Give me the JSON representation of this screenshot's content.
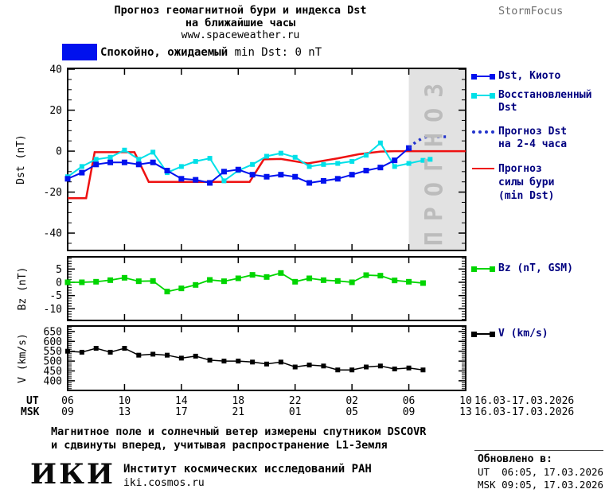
{
  "header": {
    "title_line1": "Прогноз геомагнитной бури и индекса Dst",
    "title_line2": "на ближайшие часы",
    "website": "www.spaceweather.ru",
    "brand": "StormFocus"
  },
  "status_banner": {
    "box_color": "#0011ee",
    "text_bold": "Спокойно, ожидаемый",
    "text_rest": " min Dst: 0 nT"
  },
  "forecast_zone": {
    "label": "ПРОГНОЗ",
    "fill": "#e2e2e2",
    "text_color": "#bcbcbc"
  },
  "legend_dst": {
    "items": [
      {
        "lines": [
          "Dst, Киото"
        ],
        "color": "#0011ee",
        "style": "solid-square"
      },
      {
        "lines": [
          "Восстановленный",
          "Dst"
        ],
        "color": "#00e0e8",
        "style": "solid-square"
      },
      {
        "lines": [
          "Прогноз Dst",
          "на 2-4 часа"
        ],
        "color": "#2233cc",
        "style": "dotted"
      },
      {
        "lines": [
          "Прогноз",
          "силы бури",
          "(min Dst)"
        ],
        "color": "#ee1111",
        "style": "solid"
      }
    ]
  },
  "legend_bz": {
    "label": "Bz (nT, GSM)",
    "color": "#00d500"
  },
  "legend_v": {
    "label": "V (km/s)",
    "color": "#000000"
  },
  "xaxis": {
    "ut_label": "UT",
    "msk_label": "MSK",
    "hours": [
      6,
      10,
      14,
      18,
      22,
      26,
      30,
      34
    ],
    "ut_values": [
      "06",
      "10",
      "14",
      "18",
      "22",
      "02",
      "06",
      "10"
    ],
    "msk_values": [
      "09",
      "13",
      "17",
      "21",
      "01",
      "05",
      "09",
      "13"
    ],
    "date_range": "16.03-17.03.2026"
  },
  "chart_data": [
    {
      "type": "line",
      "name": "dst",
      "ylabel": "Dst (nT)",
      "x_axis_note": "UT hour, 6 = 16.03.2026 06:00, 34 = 17.03.2026 10:00",
      "xlim": [
        6,
        34
      ],
      "ylim": [
        -48.5,
        40.4
      ],
      "yticks_major": [
        40,
        20,
        0,
        -20,
        -40
      ],
      "ytick_minor_step": 5,
      "xticks_major": [
        10,
        14,
        18,
        22,
        26,
        30
      ],
      "grid": false,
      "forecast_region": {
        "x0": 30,
        "x1": 34
      },
      "series": [
        {
          "name": "Прогноз силы бури (min Dst)",
          "key": "storm-forecast",
          "color": "#ee1111",
          "style": "solid",
          "width": 2.5,
          "marker": "none",
          "x": [
            6,
            7.3,
            7.9,
            10.7,
            11.7,
            18.8,
            19.8,
            21,
            22.9,
            25,
            26.5,
            28,
            29,
            34
          ],
          "y": [
            -23,
            -23,
            -0.5,
            -0.5,
            -15,
            -15,
            -4,
            -3.8,
            -6,
            -3.5,
            -1.5,
            -0.2,
            0,
            0
          ]
        },
        {
          "name": "Восстановленный Dst",
          "key": "restored-dst",
          "color": "#00e0e8",
          "style": "solid",
          "width": 2,
          "marker": "square",
          "marker_size": 6,
          "x": [
            6,
            7,
            8,
            9,
            10,
            11,
            12,
            13,
            14,
            15,
            16,
            17,
            18,
            19,
            20,
            21,
            22,
            23,
            24,
            25,
            26,
            27,
            28,
            29,
            30,
            31,
            31.5
          ],
          "y": [
            -12.5,
            -7.5,
            -4,
            -3,
            0.5,
            -4,
            -0.5,
            -10.5,
            -7.5,
            -5,
            -3.5,
            -14.5,
            -9.5,
            -6.5,
            -2.5,
            -1,
            -3,
            -7.5,
            -6.5,
            -6,
            -5,
            -2,
            4,
            -7.5,
            -6,
            -4.5,
            -4
          ]
        },
        {
          "name": "Dst, Киото",
          "key": "dst-kyoto",
          "color": "#0011ee",
          "style": "solid",
          "width": 2,
          "marker": "square",
          "marker_size": 7,
          "x": [
            6,
            7,
            8,
            9,
            10,
            11,
            12,
            13,
            14,
            15,
            16,
            17,
            18,
            19,
            20,
            21,
            22,
            23,
            24,
            25,
            26,
            27,
            28,
            29,
            30
          ],
          "y": [
            -13.5,
            -10.5,
            -6.5,
            -5.5,
            -5.5,
            -6.5,
            -5.5,
            -9.5,
            -13.5,
            -14,
            -15.5,
            -10,
            -9,
            -11.5,
            -12.5,
            -11.5,
            -12.5,
            -15.5,
            -14.5,
            -13.5,
            -11.5,
            -9.5,
            -8,
            -4.5,
            1.5
          ]
        },
        {
          "name": "Прогноз Dst на 2-4 часа",
          "key": "dst-forecast",
          "color": "#2233cc",
          "style": "dotted",
          "width": 3.5,
          "marker": "none",
          "x": [
            30,
            30.5,
            31,
            31.3,
            32.8
          ],
          "y": [
            1.5,
            4.5,
            6.5,
            7,
            7
          ]
        }
      ]
    },
    {
      "type": "line",
      "name": "bz",
      "ylabel": "Bz (nT)",
      "xlim": [
        6,
        34
      ],
      "ylim": [
        -14.4,
        9.6
      ],
      "yticks_major": [
        5,
        0,
        -5,
        -10
      ],
      "ytick_minor_step": 1,
      "xticks_major": [
        10,
        14,
        18,
        22,
        26,
        30
      ],
      "grid": false,
      "series": [
        {
          "name": "Bz (nT, GSM)",
          "key": "bz",
          "color": "#00d500",
          "style": "solid",
          "width": 1.8,
          "marker": "square",
          "marker_size": 7,
          "x": [
            6,
            7,
            8,
            9,
            10,
            11,
            12,
            13,
            14,
            15,
            16,
            17,
            18,
            19,
            20,
            21,
            22,
            23,
            24,
            25,
            26,
            27,
            28,
            29,
            30,
            31
          ],
          "y": [
            0,
            0,
            0.2,
            0.8,
            1.7,
            0.4,
            0.5,
            -3.5,
            -2.3,
            -1,
            0.9,
            0.4,
            1.5,
            2.8,
            2,
            3.5,
            0.2,
            1.5,
            0.8,
            0.5,
            0,
            2.7,
            2.5,
            0.7,
            0.2,
            -0.3
          ]
        }
      ]
    },
    {
      "type": "line",
      "name": "v",
      "ylabel": "V (km/s)",
      "xlim": [
        6,
        34
      ],
      "ylim": [
        351,
        678
      ],
      "yticks_major": [
        650,
        600,
        550,
        500,
        450,
        400
      ],
      "ytick_minor_step": 10,
      "xticks_major": [
        10,
        14,
        18,
        22,
        26,
        30
      ],
      "grid": false,
      "series": [
        {
          "name": "V (km/s)",
          "key": "v",
          "color": "#000000",
          "style": "solid",
          "width": 1.5,
          "marker": "square",
          "marker_size": 6,
          "x": [
            6,
            7,
            8,
            9,
            10,
            11,
            12,
            13,
            14,
            15,
            16,
            17,
            18,
            19,
            20,
            21,
            22,
            23,
            24,
            25,
            26,
            27,
            28,
            29,
            30,
            31
          ],
          "y": [
            550,
            545,
            565,
            545,
            565,
            530,
            535,
            530,
            515,
            525,
            505,
            500,
            500,
            495,
            485,
            495,
            470,
            480,
            475,
            455,
            455,
            470,
            475,
            460,
            465,
            455
          ]
        }
      ]
    }
  ],
  "footnote": {
    "line1": "Магнитное поле и солнечный ветер измерены спутником DSCOVR",
    "line2": "и сдвинуты вперед, учитывая распространение L1-Земля"
  },
  "footer": {
    "logo_text": "ИКИ",
    "institute": "Институт космических исследований РАН",
    "website": "iki.cosmos.ru",
    "updated_label": "Обновлено в:",
    "updated_ut": "UT  06:05, 17.03.2026",
    "updated_msk": "MSK 09:05, 17.03.2026"
  }
}
